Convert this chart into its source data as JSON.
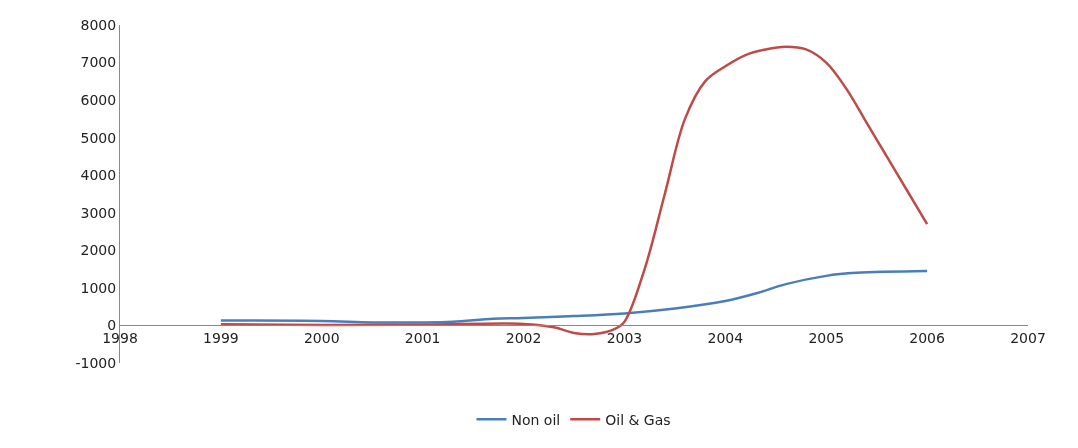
{
  "chart_data": {
    "type": "line",
    "xlim": [
      1998,
      2007
    ],
    "xticks": [
      1998,
      1999,
      2000,
      2001,
      2002,
      2003,
      2004,
      2005,
      2006,
      2007
    ],
    "ylim": [
      -1000,
      8000
    ],
    "yticks": [
      -1000,
      0,
      1000,
      2000,
      3000,
      4000,
      5000,
      6000,
      7000,
      8000
    ],
    "legend": "bottom",
    "marker": "none",
    "line_style": "solid",
    "series": [
      {
        "name": "Non oil",
        "color": "#4a7ebb",
        "x": [
          1999,
          2000,
          2000.5,
          2001,
          2001.3,
          2001.7,
          2002,
          2002.5,
          2003,
          2003.5,
          2004,
          2004.3,
          2004.6,
          2005,
          2005.3,
          2006
        ],
        "values": [
          130,
          120,
          80,
          80,
          100,
          180,
          200,
          250,
          320,
          450,
          650,
          850,
          1100,
          1320,
          1400,
          1450
        ]
      },
      {
        "name": "Oil & Gas",
        "color": "#be4b48",
        "x": [
          1999,
          2000,
          2001,
          2002,
          2002.3,
          2002.5,
          2002.7,
          2002.9,
          2003,
          2003.2,
          2003.4,
          2003.6,
          2003.8,
          2004,
          2004.2,
          2004.4,
          2004.6,
          2004.8,
          2005,
          2005.2,
          2005.4,
          2005.6,
          2005.8,
          2006
        ],
        "values": [
          30,
          10,
          20,
          40,
          -50,
          -200,
          -230,
          -100,
          100,
          1500,
          3500,
          5500,
          6500,
          6900,
          7200,
          7350,
          7420,
          7350,
          7000,
          6300,
          5400,
          4500,
          3600,
          2700
        ]
      }
    ]
  }
}
